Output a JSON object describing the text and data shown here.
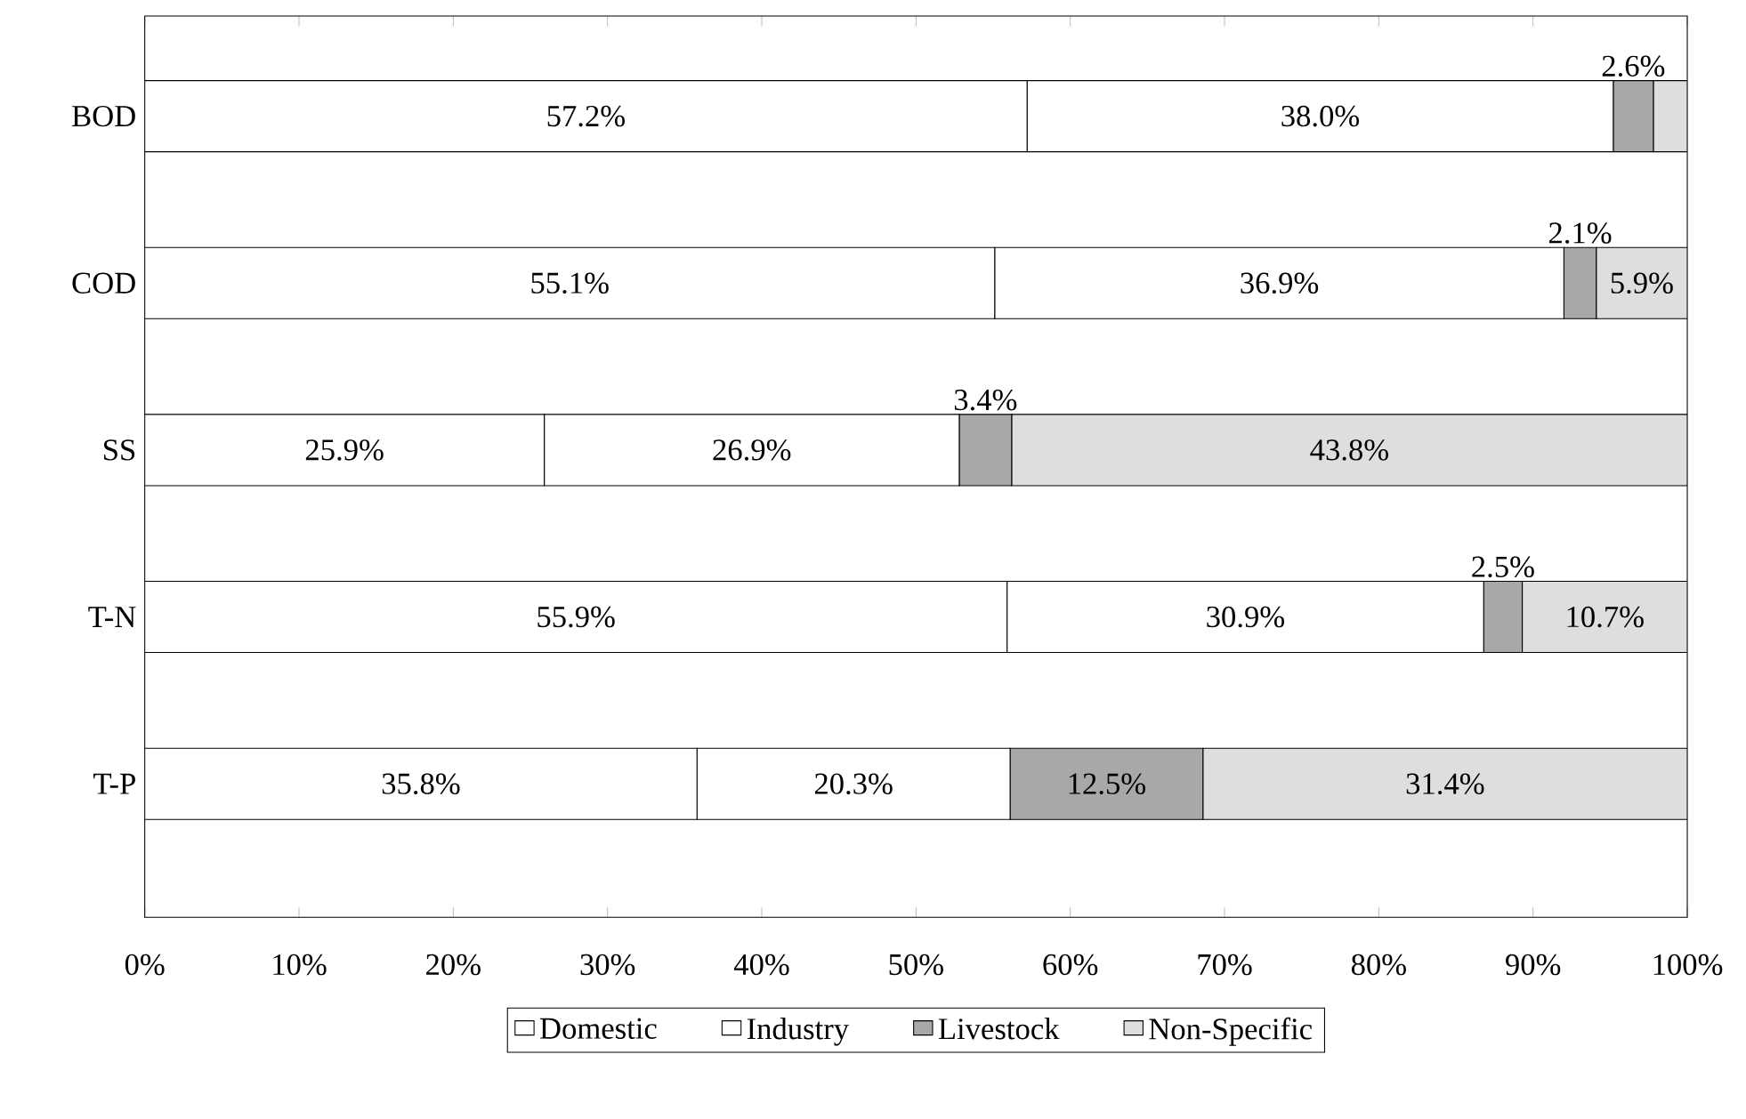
{
  "chart_data": {
    "type": "bar",
    "orientation": "horizontal",
    "stacked": true,
    "legend": "bottom",
    "categories": [
      "BOD",
      "COD",
      "SS",
      "T-N",
      "T-P"
    ],
    "series": [
      {
        "name": "Domestic",
        "color": "#ffffff",
        "values": [
          57.2,
          55.1,
          25.9,
          55.9,
          35.8
        ],
        "value_labels": [
          "57.2%",
          "55.1%",
          "25.9%",
          "55.9%",
          "35.8%"
        ]
      },
      {
        "name": "Industry",
        "color": "#ffffff",
        "values": [
          38.0,
          36.9,
          26.9,
          30.9,
          20.3
        ],
        "value_labels": [
          "38.0%",
          "36.9%",
          "26.9%",
          "30.9%",
          "20.3%"
        ]
      },
      {
        "name": "Livestock",
        "color": "#a8a8a8",
        "values": [
          2.6,
          2.1,
          3.4,
          2.5,
          12.5
        ],
        "value_labels": [
          "2.6%",
          "2.1%",
          "3.4%",
          "2.5%",
          "12.5%"
        ]
      },
      {
        "name": "Non-Specific",
        "color": "#dedede",
        "values": [
          2.2,
          5.9,
          43.8,
          10.7,
          31.4
        ],
        "value_labels": [
          null,
          "5.9%",
          "43.8%",
          "10.7%",
          "31.4%"
        ]
      }
    ],
    "xlim": [
      0,
      100
    ],
    "xticks": [
      {
        "value": 0,
        "label": "0%"
      },
      {
        "value": 10,
        "label": "10%"
      },
      {
        "value": 20,
        "label": "20%"
      },
      {
        "value": 30,
        "label": "30%"
      },
      {
        "value": 40,
        "label": "40%"
      },
      {
        "value": 50,
        "label": "50%"
      },
      {
        "value": 60,
        "label": "60%"
      },
      {
        "value": 70,
        "label": "70%"
      },
      {
        "value": 80,
        "label": "80%"
      },
      {
        "value": 90,
        "label": "90%"
      },
      {
        "value": 100,
        "label": "100%"
      }
    ]
  }
}
